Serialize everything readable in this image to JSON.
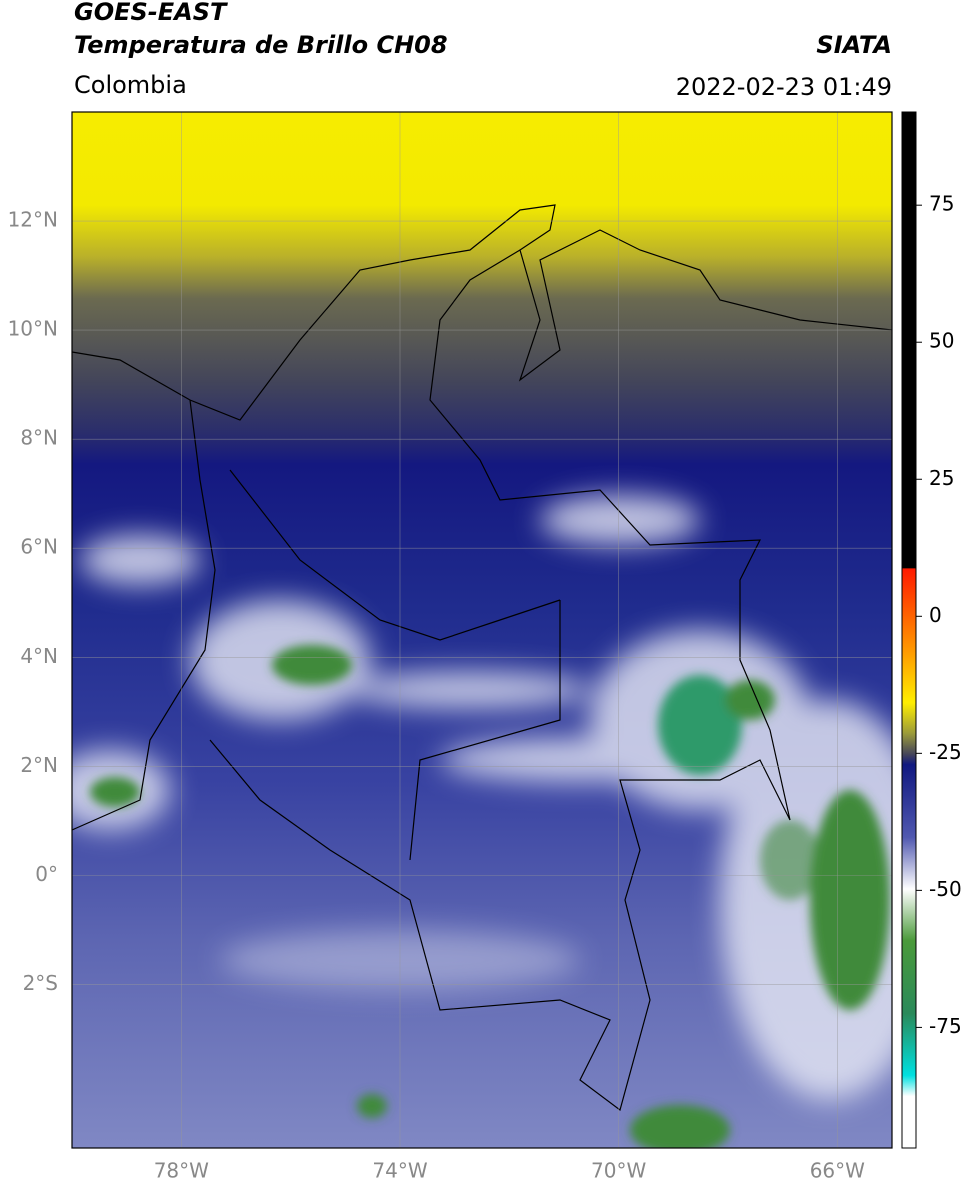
{
  "header": {
    "title": "GOES-EAST",
    "subtitle": "Temperatura de Brillo CH08",
    "region": "Colombia",
    "source": "SIATA",
    "datetime": "2022-02-23 01:49"
  },
  "map": {
    "lonlim": [
      -80,
      -65
    ],
    "latlim": [
      -5,
      14
    ],
    "lon_ticks": [
      {
        "value": -78,
        "label": "78°W"
      },
      {
        "value": -74,
        "label": "74°W"
      },
      {
        "value": -70,
        "label": "70°W"
      },
      {
        "value": -66,
        "label": "66°W"
      }
    ],
    "lat_ticks": [
      {
        "value": 12,
        "label": "12°N"
      },
      {
        "value": 10,
        "label": "10°N"
      },
      {
        "value": 8,
        "label": "8°N"
      },
      {
        "value": 6,
        "label": "6°N"
      },
      {
        "value": 4,
        "label": "4°N"
      },
      {
        "value": 2,
        "label": "2°N"
      },
      {
        "value": 0,
        "label": "0°"
      },
      {
        "value": -2,
        "label": "2°S"
      }
    ]
  },
  "colorbar": {
    "lim": [
      -97,
      92
    ],
    "ticks": [
      75,
      50,
      25,
      0,
      -25,
      -50,
      -75
    ]
  }
}
